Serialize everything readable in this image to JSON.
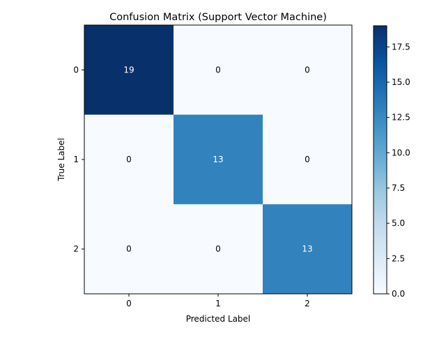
{
  "chart_data": {
    "type": "heatmap",
    "title": "Confusion Matrix (Support Vector Machine)",
    "xlabel": "Predicted Label",
    "ylabel": "True Label",
    "x_categories": [
      "0",
      "1",
      "2"
    ],
    "y_categories": [
      "0",
      "1",
      "2"
    ],
    "values": [
      [
        19,
        0,
        0
      ],
      [
        0,
        13,
        0
      ],
      [
        0,
        0,
        13
      ]
    ],
    "colormap": "Blues",
    "color_range": [
      0,
      19
    ],
    "colorbar_ticks": [
      "0.0",
      "2.5",
      "5.0",
      "7.5",
      "10.0",
      "12.5",
      "15.0",
      "17.5"
    ],
    "colorbar_tick_values": [
      0,
      2.5,
      5,
      7.5,
      10,
      12.5,
      15,
      17.5
    ],
    "grid": false,
    "colors": {
      "low": "#f7fbff",
      "mid": "#2e7ebc",
      "high": "#08306b",
      "text_light": "#ffffff",
      "text_dark": "#000000"
    }
  }
}
